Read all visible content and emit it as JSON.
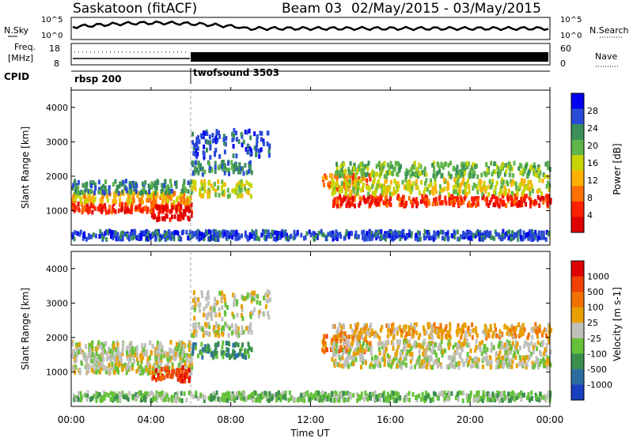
{
  "header": {
    "site": "Saskatoon (fitACF)",
    "beam": "Beam 03",
    "date_range": "02/May/2015 - 03/May/2015"
  },
  "nsky_panel": {
    "left_label": "N.Sky",
    "right_label": "N.Search",
    "y_ticks": [
      "10^5",
      "10^0"
    ]
  },
  "freq_panel": {
    "left_label_1": "Freq.",
    "left_label_2": "[MHz]",
    "right_label": "Nave",
    "left_ticks": [
      "18",
      "8"
    ],
    "right_ticks": [
      "60",
      "0"
    ]
  },
  "cpid_panel": {
    "label": "CPID",
    "modes": [
      "rbsp 200",
      "twofsound 3503"
    ]
  },
  "colors": {
    "power_scale": [
      "#0000ee",
      "#2a4bd7",
      "#3b8f5a",
      "#5fb44a",
      "#c8d400",
      "#ffb000",
      "#ff7000",
      "#ff2000",
      "#e00000"
    ],
    "velocity_scale": [
      "#1a3fbf",
      "#2b6fa0",
      "#3a8f4e",
      "#66c23a",
      "#c0c0bb",
      "#e8a000",
      "#f07000",
      "#f04000",
      "#e00000"
    ]
  },
  "chart_data": [
    {
      "type": "heatmap",
      "title": "Power",
      "xlabel": "Time UT",
      "ylabel": "Slant Range [km]",
      "xlim": [
        0,
        24
      ],
      "ylim": [
        0,
        4500
      ],
      "x_tick_labels": [
        "00:00",
        "04:00",
        "08:00",
        "12:00",
        "16:00",
        "20:00",
        "00:00"
      ],
      "y_ticks": [
        1000,
        2000,
        3000,
        4000
      ],
      "colorbar_label": "Power [dB]",
      "colorbar_ticks": [
        "28",
        "24",
        "20",
        "16",
        "12",
        "8",
        "4"
      ]
    },
    {
      "type": "heatmap",
      "title": "Velocity",
      "xlabel": "Time UT",
      "ylabel": "Slant Range [km]",
      "xlim": [
        0,
        24
      ],
      "ylim": [
        0,
        4500
      ],
      "x_tick_labels": [
        "00:00",
        "04:00",
        "08:00",
        "12:00",
        "16:00",
        "20:00",
        "00:00"
      ],
      "y_ticks": [
        1000,
        2000,
        3000,
        4000
      ],
      "colorbar_label": "Velocity [m s-1]",
      "colorbar_ticks": [
        "1000",
        "500",
        "100",
        "25",
        "-25",
        "-100",
        "-500",
        "-1000"
      ]
    }
  ]
}
